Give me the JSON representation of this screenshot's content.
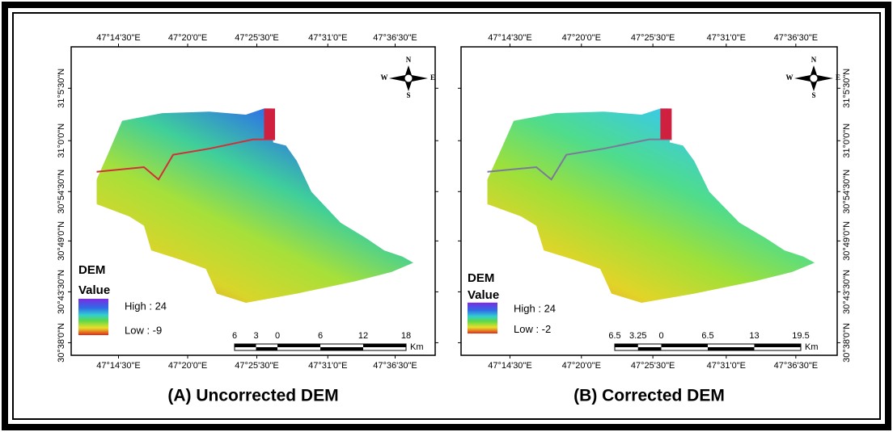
{
  "panels": [
    {
      "title": "(A) Uncorrected DEM",
      "lon_ticks": [
        "47°14'30\"E",
        "47°20'0\"E",
        "47°25'30\"E",
        "47°31'0\"E",
        "47°36'30\"E"
      ],
      "lat_ticks": [
        "31°5'30\"N",
        "31°0'0\"N",
        "30°54'30\"N",
        "30°49'0\"N",
        "30°43'30\"N",
        "30°38'0\"N"
      ],
      "legend": {
        "title": "DEM",
        "subtitle": "Value",
        "high": "High : 24",
        "low": "Low : -9"
      },
      "scale": {
        "labels": [
          "6",
          "3",
          "0",
          "6",
          "12",
          "18"
        ],
        "unit": "Km"
      },
      "compass": {
        "n": "N",
        "s": "S",
        "e": "E",
        "w": "W"
      }
    },
    {
      "title": "(B) Corrected DEM",
      "lon_ticks": [
        "47°14'30\"E",
        "47°20'0\"E",
        "47°25'30\"E",
        "47°31'0\"E",
        "47°36'30\"E"
      ],
      "lat_ticks": [
        "31°5'30\"N",
        "31°0'0\"N",
        "30°54'30\"N",
        "30°49'0\"N",
        "30°43'30\"N",
        "30°38'0\"N"
      ],
      "legend": {
        "title": "DEM",
        "subtitle": "Value",
        "high": "High : 24",
        "low": "Low : -2"
      },
      "scale": {
        "labels": [
          "6.5",
          "3.25",
          "0",
          "6.5",
          "13",
          "19.5"
        ],
        "unit": "Km"
      },
      "compass": {
        "n": "N",
        "s": "S",
        "e": "E",
        "w": "W"
      }
    }
  ]
}
